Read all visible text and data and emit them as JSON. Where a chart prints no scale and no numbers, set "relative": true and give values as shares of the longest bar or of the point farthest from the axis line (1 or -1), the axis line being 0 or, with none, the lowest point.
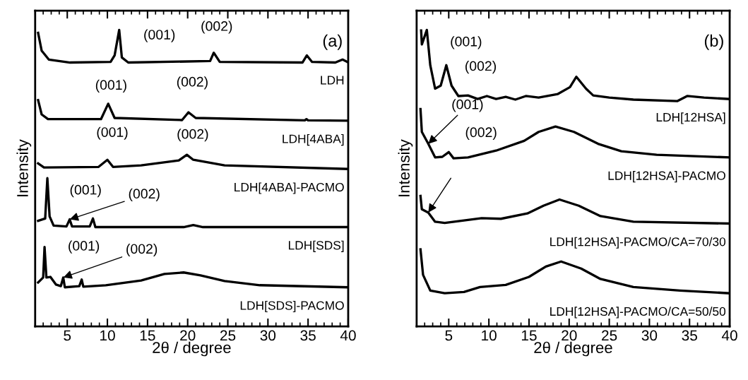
{
  "chart_data": [
    {
      "type": "line",
      "relative": true,
      "xlabel": "2θ / degree",
      "ylabel": "Intensity",
      "xlim": [
        1,
        40
      ],
      "xticks": [
        5,
        10,
        15,
        20,
        25,
        30,
        35,
        40
      ],
      "tick_labels": "x",
      "legend": false,
      "grid": false,
      "series": [
        {
          "name": "LDH",
          "color": "#000000",
          "x": [
            1.37,
            1.81,
            2.7,
            5.35,
            10.4,
            10.9,
            11.47,
            11.8,
            12.6,
            22.8,
            23.25,
            24.0,
            34.3,
            34.85,
            35.5,
            38.4,
            39.3,
            39.9
          ],
          "values": [
            0.99,
            0.93,
            0.9,
            0.89,
            0.892,
            0.914,
            1.0,
            0.907,
            0.89,
            0.895,
            0.923,
            0.892,
            0.89,
            0.914,
            0.892,
            0.89,
            0.9,
            0.892
          ]
        },
        {
          "name": "LDH[4ABA]",
          "color": "#000000",
          "x": [
            1.37,
            1.81,
            2.6,
            9.2,
            10.1,
            10.9,
            19.3,
            20.1,
            21.0,
            34.6,
            34.8,
            35.0,
            39.9
          ],
          "values": [
            0.763,
            0.715,
            0.699,
            0.699,
            0.751,
            0.703,
            0.696,
            0.722,
            0.703,
            0.695,
            0.699,
            0.695,
            0.694
          ]
        },
        {
          "name": "LDH[4ABA]-PACMO",
          "color": "#000000",
          "x": [
            1.37,
            2.1,
            8.9,
            10.0,
            10.7,
            14.2,
            18.9,
            19.9,
            20.7,
            24.6,
            39.9
          ],
          "values": [
            0.55,
            0.536,
            0.538,
            0.562,
            0.538,
            0.543,
            0.56,
            0.579,
            0.562,
            0.543,
            0.531
          ]
        },
        {
          "name": "LDH[SDS]",
          "color": "#000000",
          "x": [
            1.37,
            2.25,
            2.52,
            2.8,
            3.3,
            4.9,
            5.3,
            5.6,
            7.8,
            8.2,
            8.5,
            19.5,
            20.7,
            21.9,
            39.9
          ],
          "values": [
            0.356,
            0.364,
            0.5,
            0.371,
            0.34,
            0.337,
            0.361,
            0.337,
            0.337,
            0.364,
            0.335,
            0.335,
            0.342,
            0.335,
            0.335
          ]
        },
        {
          "name": "LDH[SDS]-PACMO",
          "color": "#000000",
          "x": [
            1.37,
            2.0,
            2.17,
            2.4,
            2.9,
            3.6,
            4.2,
            4.5,
            4.7,
            6.5,
            6.8,
            7.0,
            9.8,
            14.2,
            17.1,
            19.5,
            21.6,
            24.6,
            29.0,
            39.9
          ],
          "values": [
            0.148,
            0.165,
            0.268,
            0.165,
            0.167,
            0.141,
            0.136,
            0.165,
            0.132,
            0.136,
            0.158,
            0.134,
            0.139,
            0.155,
            0.177,
            0.182,
            0.172,
            0.153,
            0.139,
            0.132
          ]
        }
      ],
      "annotations": [
        {
          "text": "(001)",
          "x": 11.47,
          "y": 1.0
        },
        {
          "text": "(002)",
          "x": 23.25,
          "y": 0.923
        },
        "(a)",
        {
          "text": "(001)",
          "x": 10.1,
          "y": 0.751
        },
        {
          "text": "(002)",
          "x": 20.1,
          "y": 0.722
        },
        {
          "text": "(001)",
          "x": 10.0,
          "y": 0.562
        },
        {
          "text": "(002)",
          "x": 19.9,
          "y": 0.579
        },
        {
          "text": "(001)",
          "x": 2.52,
          "y": 0.5
        },
        {
          "text": "(002)",
          "x": 5.3,
          "y": 0.361
        },
        {
          "text": "(001)",
          "x": 2.17,
          "y": 0.268
        },
        {
          "text": "(002)",
          "x": 4.5,
          "y": 0.165
        }
      ]
    },
    {
      "type": "line",
      "relative": true,
      "xlabel": "2θ / degree",
      "ylabel": "Intensity",
      "xlim": [
        1,
        40
      ],
      "xticks": [
        5,
        10,
        15,
        20,
        25,
        30,
        35,
        40
      ],
      "tick_labels": "x",
      "legend": false,
      "grid": false,
      "series": [
        {
          "name": "LDH[12HSA]",
          "color": "#000000",
          "x": [
            1.56,
            1.65,
            2.27,
            2.7,
            3.3,
            4.0,
            4.7,
            5.35,
            6.2,
            7.4,
            8.6,
            9.75,
            10.9,
            12.1,
            13.3,
            14.6,
            16.2,
            18.6,
            20.1,
            20.9,
            22.1,
            23.0,
            25.0,
            28.0,
            33.5,
            34.7,
            36.8,
            39.9
          ],
          "values": [
            0.998,
            0.951,
            1.0,
            0.881,
            0.802,
            0.812,
            0.881,
            0.812,
            0.777,
            0.779,
            0.767,
            0.777,
            0.767,
            0.774,
            0.765,
            0.777,
            0.772,
            0.784,
            0.807,
            0.842,
            0.802,
            0.779,
            0.772,
            0.765,
            0.76,
            0.777,
            0.772,
            0.767
          ]
        },
        {
          "name": "LDH[12HSA]-PACMO",
          "color": "#000000",
          "x": [
            1.48,
            1.65,
            2.45,
            3.3,
            4.2,
            5.0,
            5.6,
            7.4,
            10.9,
            14.4,
            16.2,
            18.3,
            20.6,
            23.6,
            26.5,
            30.9,
            39.9
          ],
          "values": [
            0.733,
            0.656,
            0.616,
            0.57,
            0.572,
            0.588,
            0.567,
            0.57,
            0.593,
            0.626,
            0.656,
            0.674,
            0.656,
            0.616,
            0.591,
            0.579,
            0.57
          ]
        },
        {
          "name": "LDH[12HSA]-PACMO/CA=70/30",
          "color": "#000000",
          "x": [
            1.48,
            1.65,
            2.45,
            3.3,
            4.5,
            9.1,
            11.5,
            14.8,
            16.8,
            18.8,
            21.2,
            23.9,
            28.0,
            39.9
          ],
          "values": [
            0.44,
            0.395,
            0.384,
            0.353,
            0.349,
            0.365,
            0.363,
            0.381,
            0.407,
            0.428,
            0.407,
            0.372,
            0.353,
            0.347
          ]
        },
        {
          "name": "LDH[12HSA]-PACMO/CA=50/50",
          "color": "#000000",
          "x": [
            1.48,
            1.8,
            2.7,
            4.5,
            6.9,
            8.9,
            12.1,
            15.0,
            17.1,
            19.0,
            21.5,
            23.9,
            28.0,
            33.8,
            39.9
          ],
          "values": [
            0.26,
            0.174,
            0.121,
            0.112,
            0.116,
            0.133,
            0.14,
            0.167,
            0.202,
            0.219,
            0.195,
            0.16,
            0.133,
            0.121,
            0.112
          ]
        }
      ],
      "annotations": [
        {
          "text": "(001)",
          "x": 2.27,
          "y": 1.0
        },
        {
          "text": "(002)",
          "x": 4.7,
          "y": 0.881
        },
        "(b)",
        {
          "text": "(001)",
          "x": 2.45,
          "y": 0.616
        },
        {
          "text": "(002)",
          "x": 5.0,
          "y": 0.588
        }
      ]
    }
  ]
}
